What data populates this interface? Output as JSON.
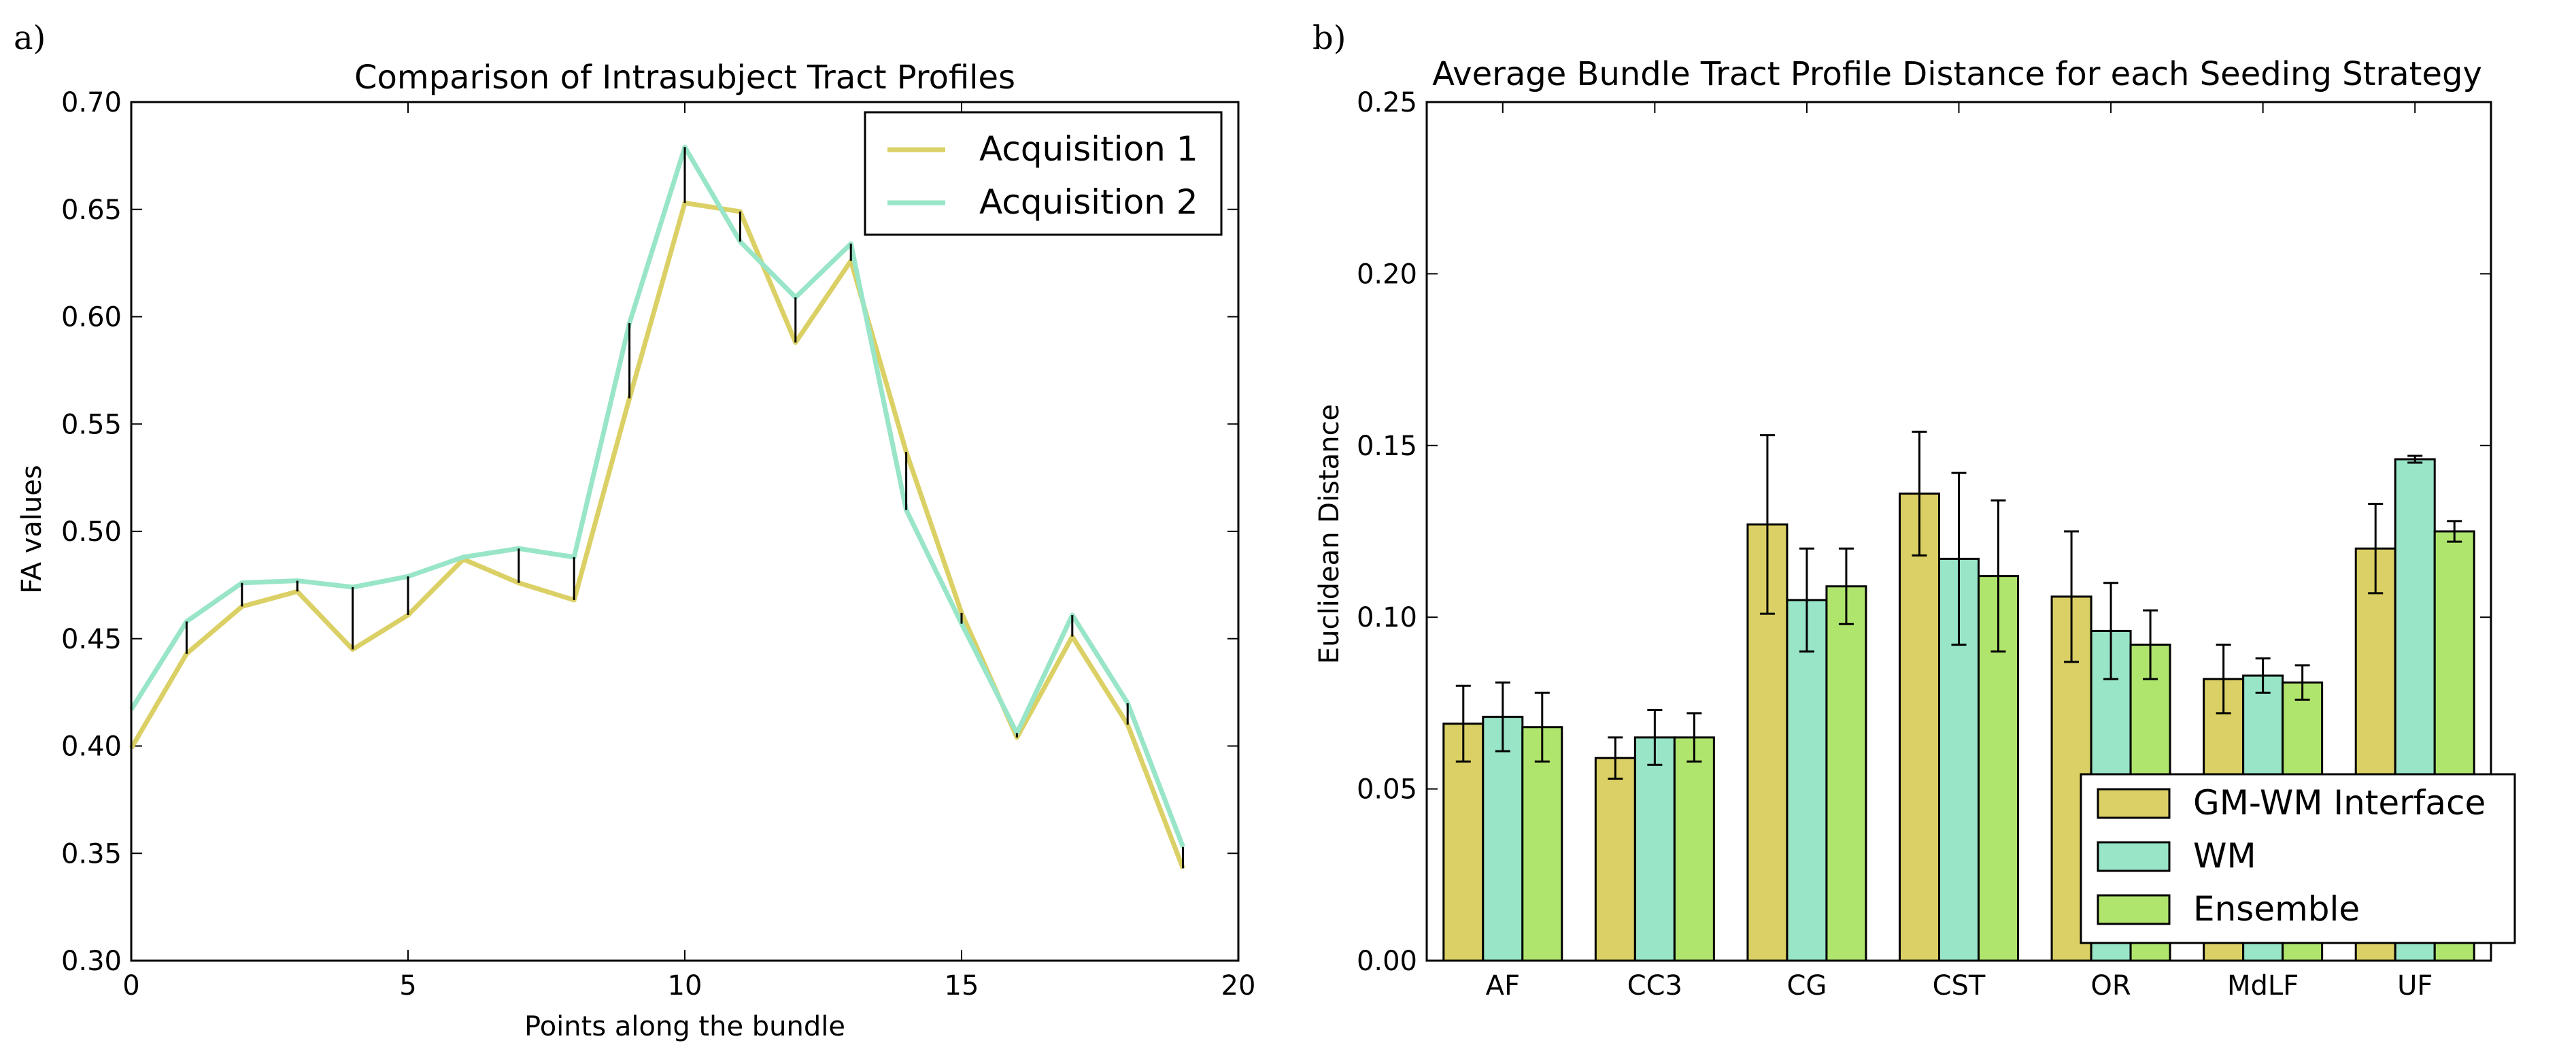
{
  "colors": {
    "acq1": "#dbd065",
    "acq2": "#98e5c8",
    "gmwm": "#dbd065",
    "wm": "#98e5c8",
    "ensemble": "#b0e56d"
  },
  "chart_data": [
    {
      "type": "line",
      "panel_label": "a)",
      "title": "Comparison of Intrasubject Tract Profiles",
      "xlabel": "Points along the bundle",
      "ylabel": "FA values",
      "xlim": [
        0,
        20
      ],
      "ylim": [
        0.3,
        0.7
      ],
      "xticks": [
        0,
        5,
        10,
        15,
        20
      ],
      "yticks": [
        0.3,
        0.35,
        0.4,
        0.45,
        0.5,
        0.55,
        0.6,
        0.65,
        0.7
      ],
      "xtick_labels": [
        "0",
        "5",
        "10",
        "15",
        "20"
      ],
      "ytick_labels": [
        "0.30",
        "0.35",
        "0.40",
        "0.45",
        "0.50",
        "0.55",
        "0.60",
        "0.65",
        "0.70"
      ],
      "legend_position": "top-right",
      "x": [
        0,
        1,
        2,
        3,
        4,
        5,
        6,
        7,
        8,
        9,
        10,
        11,
        12,
        13,
        14,
        15,
        16,
        17,
        18,
        19
      ],
      "series": [
        {
          "name": "Acquisition 1",
          "color_key": "acq1",
          "values": [
            0.399,
            0.443,
            0.465,
            0.472,
            0.445,
            0.461,
            0.487,
            0.476,
            0.468,
            0.562,
            0.653,
            0.649,
            0.588,
            0.626,
            0.537,
            0.462,
            0.404,
            0.451,
            0.41,
            0.343
          ]
        },
        {
          "name": "Acquisition 2",
          "color_key": "acq2",
          "values": [
            0.417,
            0.458,
            0.476,
            0.477,
            0.474,
            0.479,
            0.488,
            0.492,
            0.488,
            0.597,
            0.679,
            0.635,
            0.609,
            0.634,
            0.51,
            0.457,
            0.406,
            0.461,
            0.42,
            0.353
          ]
        }
      ]
    },
    {
      "type": "bar",
      "panel_label": "b)",
      "title": "Average Bundle Tract Profile Distance for each Seeding Strategy",
      "xlabel": "",
      "ylabel": "Euclidean Distance",
      "ylim": [
        0.0,
        0.25
      ],
      "yticks": [
        0.0,
        0.05,
        0.1,
        0.15,
        0.2,
        0.25
      ],
      "ytick_labels": [
        "0.00",
        "0.05",
        "0.10",
        "0.15",
        "0.20",
        "0.25"
      ],
      "legend_position": "bottom-right",
      "categories": [
        "AF",
        "CC3",
        "CG",
        "CST",
        "OR",
        "MdLF",
        "UF"
      ],
      "series": [
        {
          "name": "GM-WM Interface",
          "color_key": "gmwm",
          "values": [
            0.069,
            0.059,
            0.127,
            0.136,
            0.106,
            0.082,
            0.12
          ],
          "errors": [
            0.011,
            0.006,
            0.026,
            0.018,
            0.019,
            0.01,
            0.013
          ]
        },
        {
          "name": "WM",
          "color_key": "wm",
          "values": [
            0.071,
            0.065,
            0.105,
            0.117,
            0.096,
            0.083,
            0.146
          ],
          "errors": [
            0.01,
            0.008,
            0.015,
            0.025,
            0.014,
            0.005,
            0.001
          ]
        },
        {
          "name": "Ensemble",
          "color_key": "ensemble",
          "values": [
            0.068,
            0.065,
            0.109,
            0.112,
            0.092,
            0.081,
            0.125
          ],
          "errors": [
            0.01,
            0.007,
            0.011,
            0.022,
            0.01,
            0.005,
            0.003
          ]
        }
      ]
    }
  ]
}
